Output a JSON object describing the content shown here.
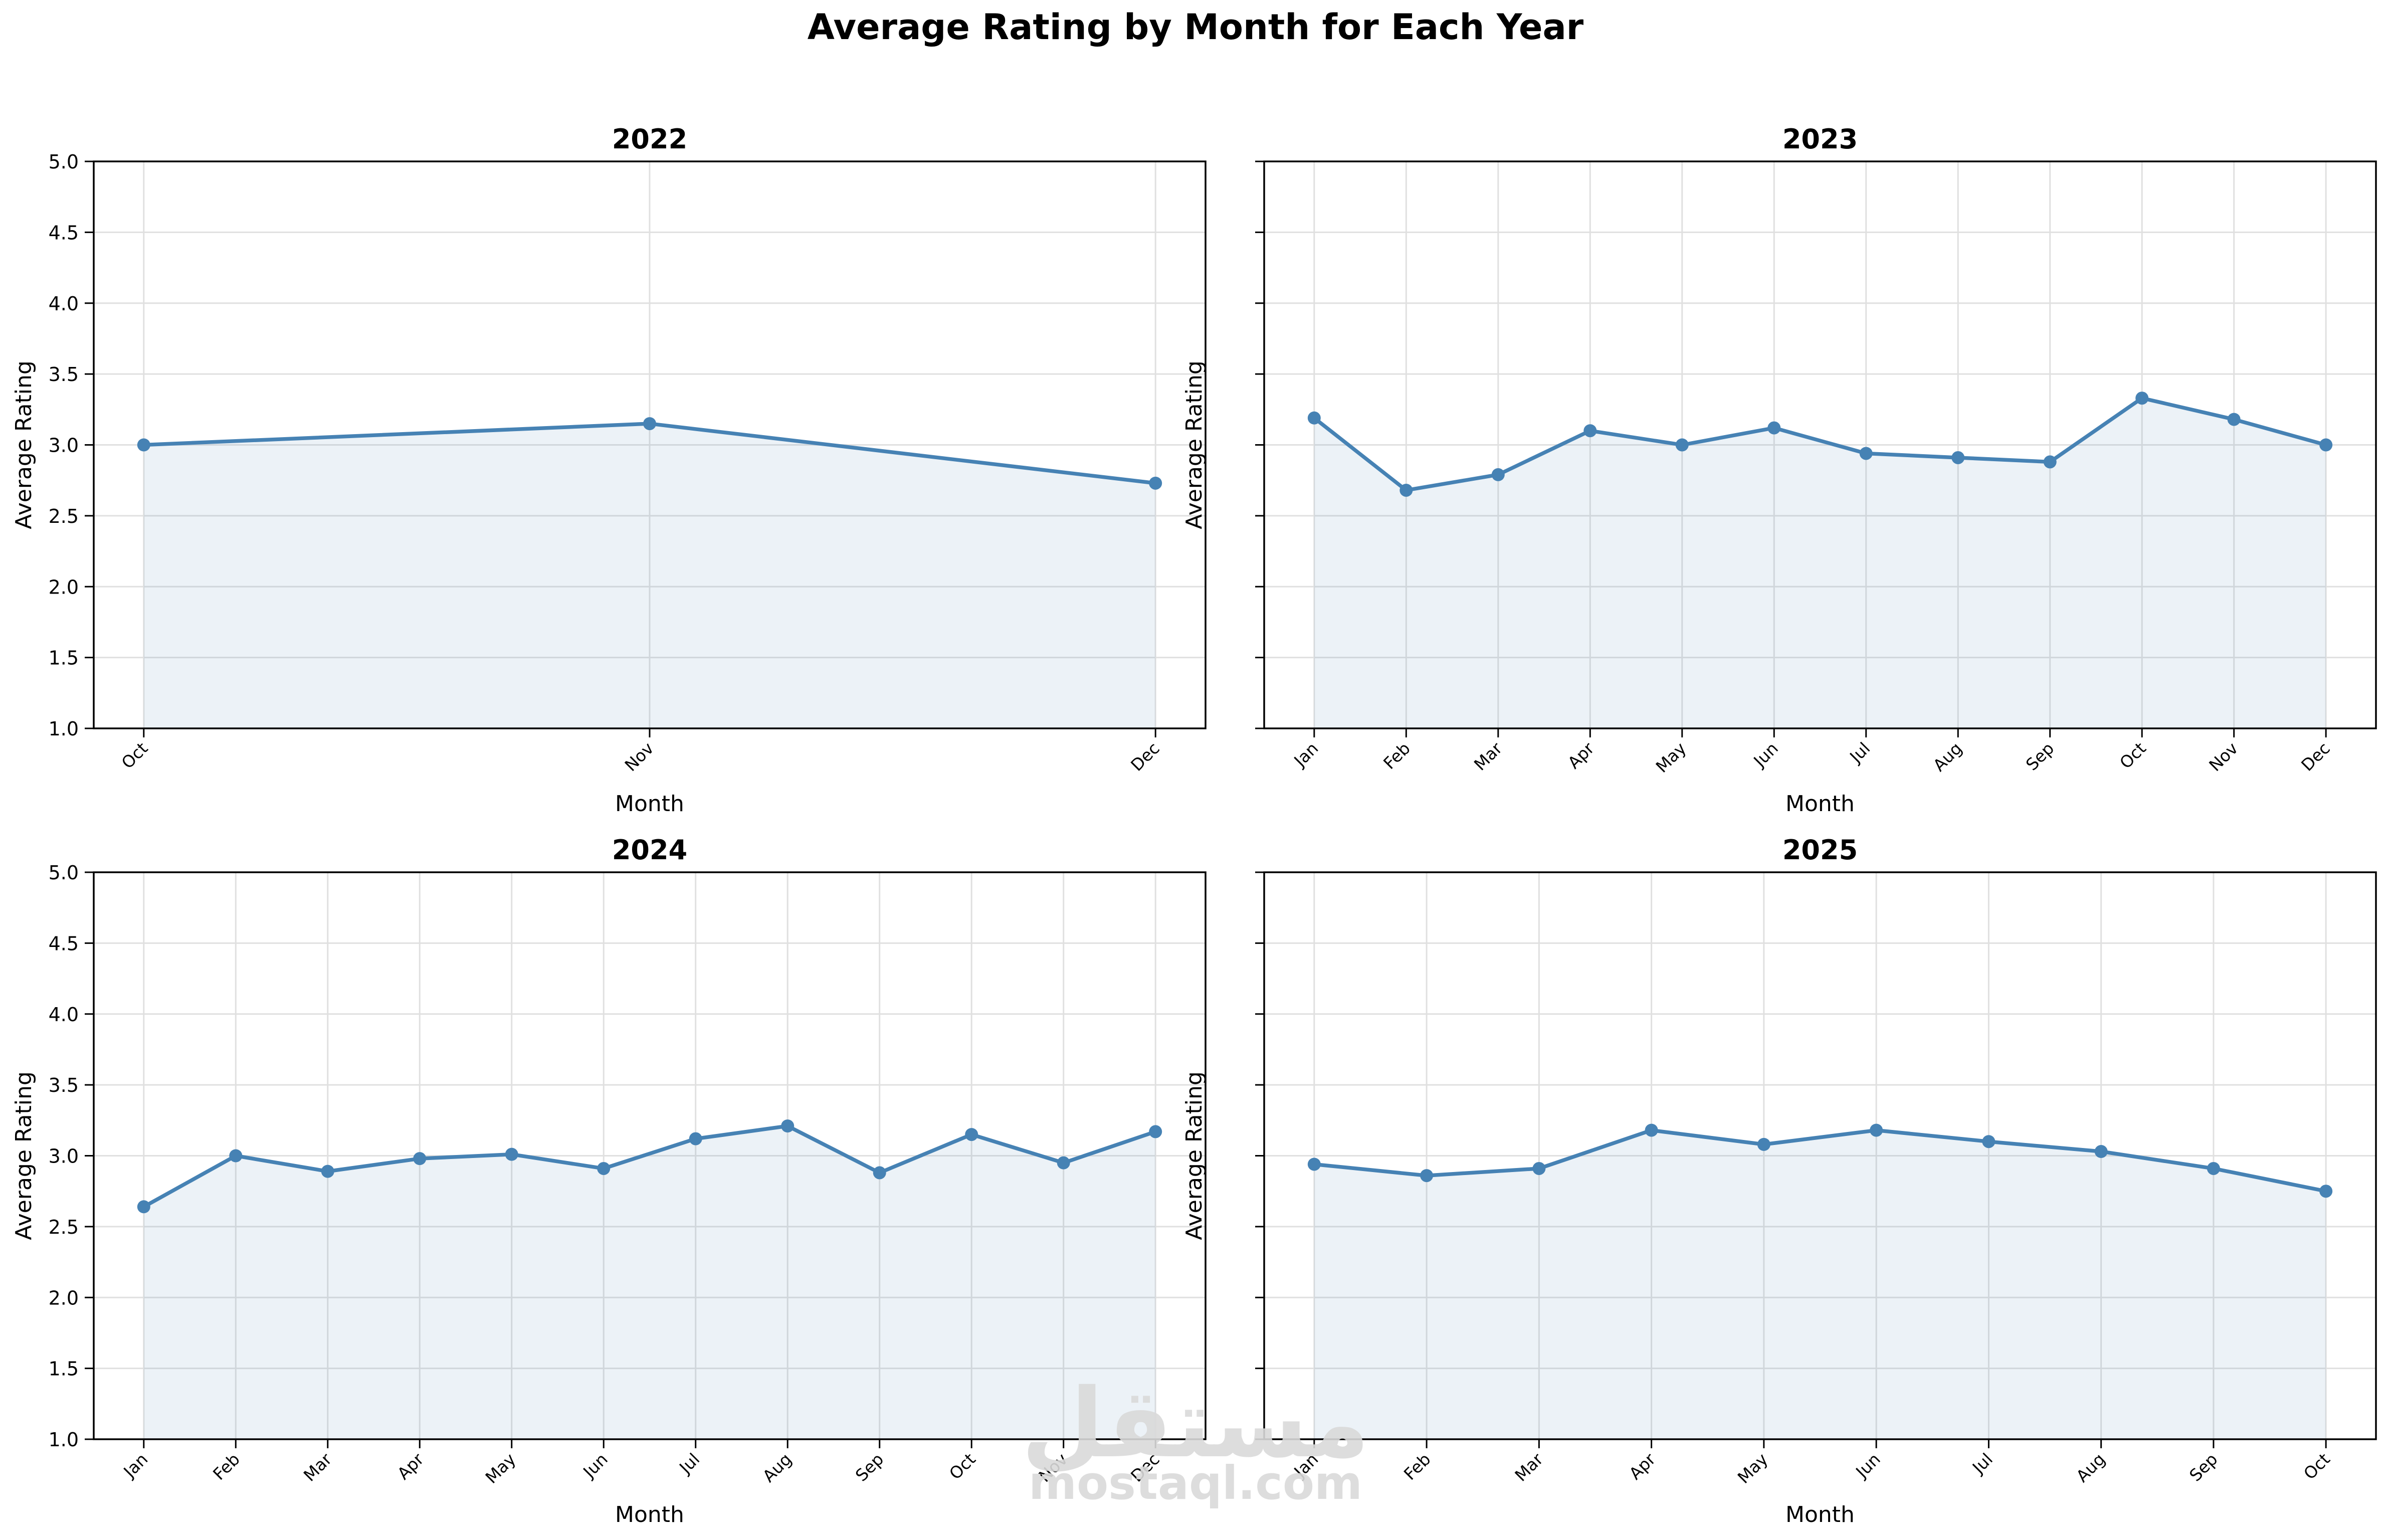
{
  "figure": {
    "title": "Average Rating by Month for Each Year",
    "watermark": {
      "arabic": "مستقل",
      "latin": "mostaql.com"
    }
  },
  "style": {
    "line_color": "#4682b4",
    "fill_color": "#4682b4",
    "fill_opacity": 0.1,
    "grid_color": "#e0e0e0",
    "axis_color": "#000000",
    "watermark_color": "#dadada"
  },
  "chart_data": [
    {
      "type": "area",
      "title": "2022",
      "xlabel": "Month",
      "ylabel": "Average Rating",
      "ylim": [
        1.0,
        5.0
      ],
      "yticks": [
        "1.0",
        "1.5",
        "2.0",
        "2.5",
        "3.0",
        "3.5",
        "4.0",
        "4.5",
        "5.0"
      ],
      "show_ytick_labels": true,
      "grid": true,
      "markers": true,
      "categories": [
        "Oct",
        "Nov",
        "Dec"
      ],
      "values": [
        3.0,
        3.15,
        2.73
      ]
    },
    {
      "type": "area",
      "title": "2023",
      "xlabel": "Month",
      "ylabel": "Average Rating",
      "ylim": [
        1.0,
        5.0
      ],
      "yticks": [
        "1.0",
        "1.5",
        "2.0",
        "2.5",
        "3.0",
        "3.5",
        "4.0",
        "4.5",
        "5.0"
      ],
      "show_ytick_labels": false,
      "grid": true,
      "markers": true,
      "categories": [
        "Jan",
        "Feb",
        "Mar",
        "Apr",
        "May",
        "Jun",
        "Jul",
        "Aug",
        "Sep",
        "Oct",
        "Nov",
        "Dec"
      ],
      "values": [
        3.19,
        2.68,
        2.79,
        3.1,
        3.0,
        3.12,
        2.94,
        2.91,
        2.88,
        3.33,
        3.18,
        3.0
      ]
    },
    {
      "type": "area",
      "title": "2024",
      "xlabel": "Month",
      "ylabel": "Average Rating",
      "ylim": [
        1.0,
        5.0
      ],
      "yticks": [
        "1.0",
        "1.5",
        "2.0",
        "2.5",
        "3.0",
        "3.5",
        "4.0",
        "4.5",
        "5.0"
      ],
      "show_ytick_labels": true,
      "grid": true,
      "markers": true,
      "categories": [
        "Jan",
        "Feb",
        "Mar",
        "Apr",
        "May",
        "Jun",
        "Jul",
        "Aug",
        "Sep",
        "Oct",
        "Nov",
        "Dec"
      ],
      "values": [
        2.64,
        3.0,
        2.89,
        2.98,
        3.01,
        2.91,
        3.12,
        3.21,
        2.88,
        3.15,
        2.95,
        3.17
      ]
    },
    {
      "type": "area",
      "title": "2025",
      "xlabel": "Month",
      "ylabel": "Average Rating",
      "ylim": [
        1.0,
        5.0
      ],
      "yticks": [
        "1.0",
        "1.5",
        "2.0",
        "2.5",
        "3.0",
        "3.5",
        "4.0",
        "4.5",
        "5.0"
      ],
      "show_ytick_labels": false,
      "grid": true,
      "markers": true,
      "categories": [
        "Jan",
        "Feb",
        "Mar",
        "Apr",
        "May",
        "Jun",
        "Jul",
        "Aug",
        "Sep",
        "Oct"
      ],
      "values": [
        2.94,
        2.86,
        2.91,
        3.18,
        3.08,
        3.18,
        3.1,
        3.03,
        2.91,
        2.75
      ]
    }
  ]
}
